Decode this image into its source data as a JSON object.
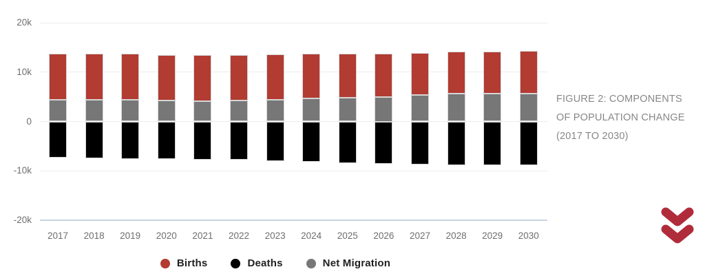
{
  "figure": {
    "caption_lines": [
      "FIGURE 2: COMPONENTS",
      "OF POPULATION CHANGE",
      "(2017 TO 2030)"
    ]
  },
  "colors": {
    "births": "#b23b32",
    "deaths": "#000000",
    "net_migration": "#777777",
    "gridline": "#ececec",
    "axis_line": "#c7d4e2",
    "tick_label": "#6e6e6e",
    "legend_text": "#1f1f1f",
    "caption_text": "#878787",
    "chevron": "#b12c3b"
  },
  "chart_data": {
    "type": "bar",
    "stacked": true,
    "title": "",
    "xlabel": "",
    "ylabel": "",
    "value_unit": "thousands (k)",
    "ylim": [
      -20,
      20
    ],
    "grid": true,
    "legend_position": "bottom",
    "categories": [
      "2017",
      "2018",
      "2019",
      "2020",
      "2021",
      "2022",
      "2023",
      "2024",
      "2025",
      "2026",
      "2027",
      "2028",
      "2029",
      "2030"
    ],
    "series": [
      {
        "name": "Births",
        "color_key": "births",
        "values": [
          9.3,
          9.3,
          9.3,
          9.2,
          9.4,
          9.2,
          9.2,
          9.1,
          8.9,
          8.7,
          8.5,
          8.5,
          8.5,
          8.6
        ]
      },
      {
        "name": "Deaths",
        "color_key": "deaths",
        "values": [
          -7.3,
          -7.4,
          -7.6,
          -7.6,
          -7.8,
          -7.8,
          -8.0,
          -8.2,
          -8.5,
          -8.6,
          -8.7,
          -8.8,
          -8.9,
          -8.9
        ]
      },
      {
        "name": "Net Migration",
        "color_key": "net_migration",
        "values": [
          4.4,
          4.4,
          4.4,
          4.3,
          4.1,
          4.3,
          4.4,
          4.6,
          4.8,
          5.0,
          5.4,
          5.6,
          5.6,
          5.7
        ]
      }
    ],
    "stack_note": "Net Migration is the lower positive segment, Births stacked above it, Deaths below zero",
    "y_ticks": [
      {
        "label": "20k",
        "value": 20
      },
      {
        "label": "10k",
        "value": 10
      },
      {
        "label": "0",
        "value": 0
      },
      {
        "label": "-10k",
        "value": -10
      },
      {
        "label": "-20k",
        "value": -20
      }
    ]
  }
}
